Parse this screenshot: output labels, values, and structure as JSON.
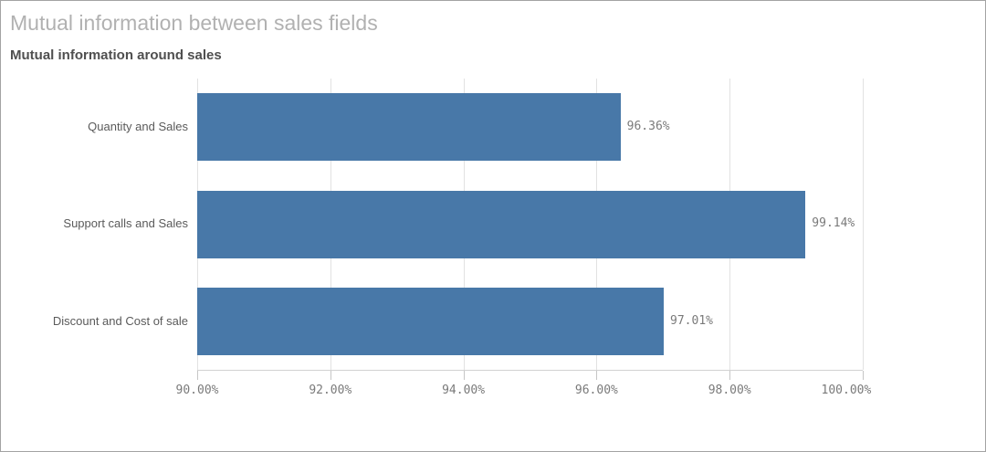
{
  "header": {
    "title": "Mutual information between sales fields",
    "subtitle": "Mutual information around sales"
  },
  "chart_data": {
    "type": "bar",
    "orientation": "horizontal",
    "title": "Mutual information between sales fields",
    "subtitle": "Mutual information around sales",
    "categories": [
      "Quantity and Sales",
      "Support calls and Sales",
      "Discount and Cost of sale"
    ],
    "values": [
      96.36,
      99.14,
      97.01
    ],
    "value_labels": [
      "96.36%",
      "99.14%",
      "97.01%"
    ],
    "xlim": [
      90,
      100
    ],
    "xticks": [
      {
        "value": 90,
        "label": "90.00%"
      },
      {
        "value": 92,
        "label": "92.00%"
      },
      {
        "value": 94,
        "label": "94.00%"
      },
      {
        "value": 96,
        "label": "96.00%"
      },
      {
        "value": 98,
        "label": "98.00%"
      },
      {
        "value": 100,
        "label": "100.00%"
      }
    ],
    "grid": true,
    "legend": false,
    "bar_color": "#4878a8",
    "gridline_color": "#e2e2e2",
    "axis_line_color": "#d2d2d2"
  }
}
